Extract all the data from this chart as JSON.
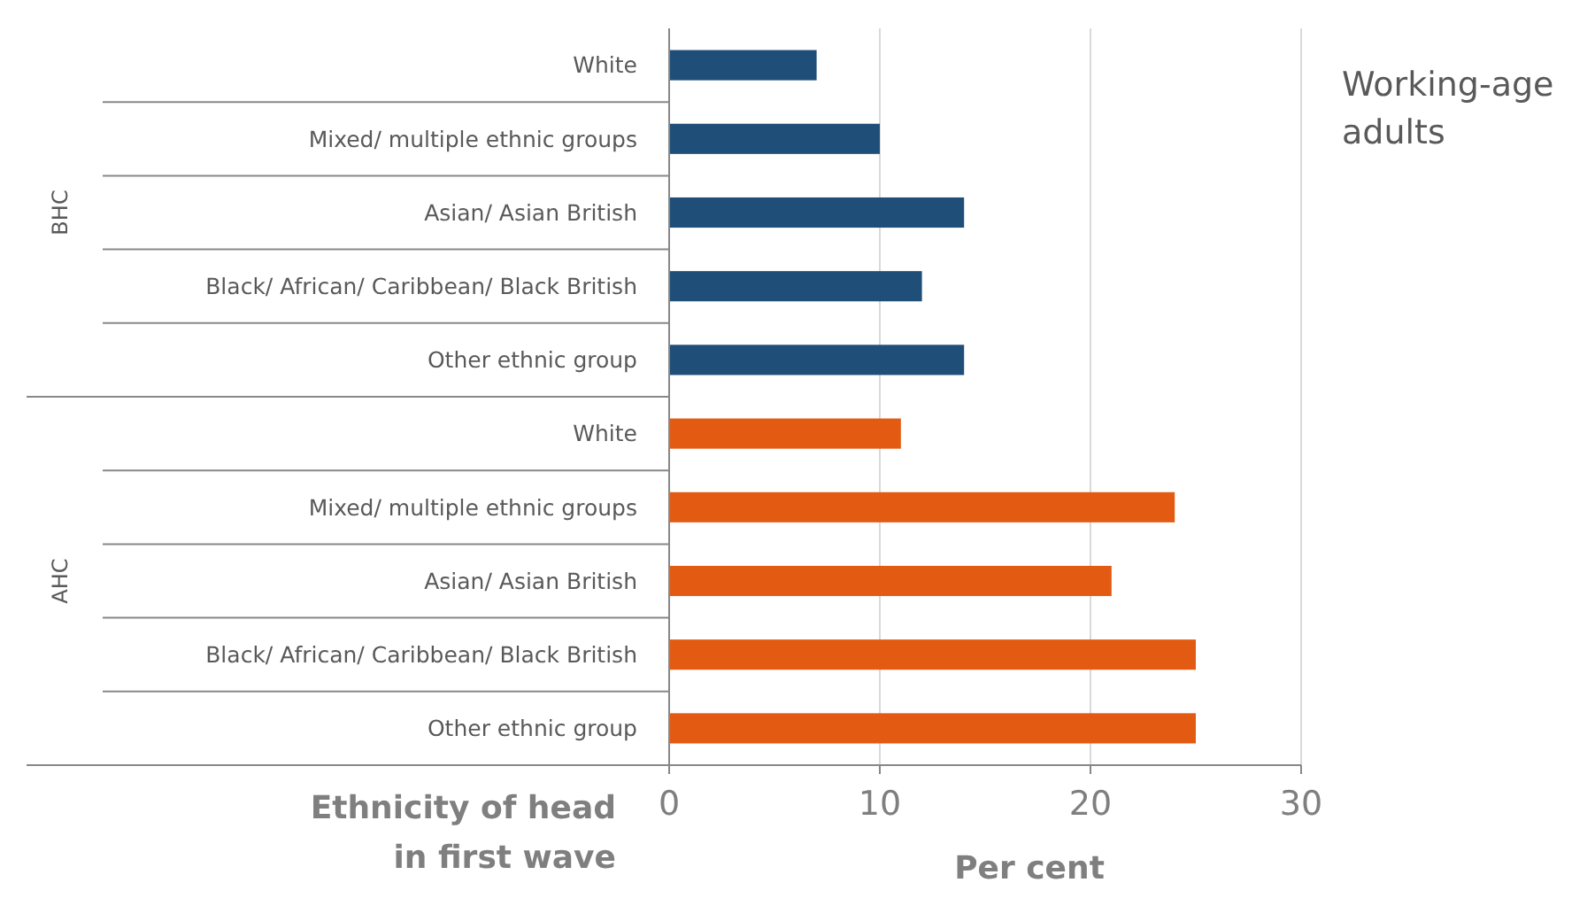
{
  "chart_data": {
    "type": "bar",
    "orientation": "horizontal",
    "title": "Working-age adults",
    "xlabel": "Per cent",
    "ylabel": "Ethnicity of head in first wave",
    "categories": [
      "White",
      "Mixed/ multiple ethnic groups",
      "Asian/ Asian British",
      "Black/ African/ Caribbean/ Black British",
      "Other ethnic group",
      "White",
      "Mixed/ multiple ethnic groups",
      "Asian/ Asian British",
      "Black/ African/ Caribbean/ Black British",
      "Other ethnic group"
    ],
    "annotations": [
      "BHC",
      "AHC"
    ],
    "series": [
      {
        "color": "#1f4e79",
        "values": [
          7,
          10,
          14,
          12,
          14,
          null,
          null,
          null,
          null,
          null
        ]
      },
      {
        "color": "#e35b12",
        "values": [
          null,
          null,
          null,
          null,
          null,
          11,
          24,
          21,
          25,
          25
        ]
      }
    ],
    "xlim": [
      0,
      30
    ],
    "xticks": [
      0,
      10,
      20,
      30
    ],
    "grid": "x"
  }
}
